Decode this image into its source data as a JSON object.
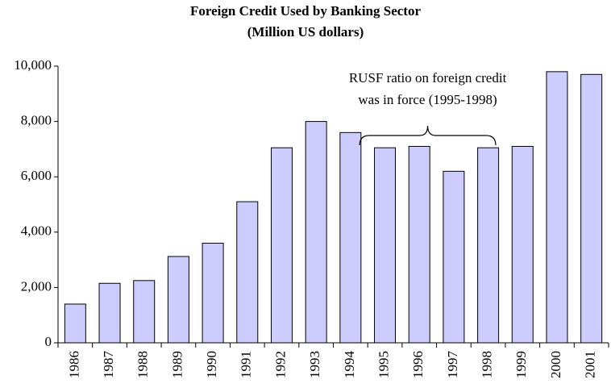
{
  "chart_data": {
    "type": "bar",
    "title": [
      "Foreign Credit Used by Banking Sector",
      "(Million US dollars)"
    ],
    "categories": [
      "1986",
      "1987",
      "1988",
      "1989",
      "1990",
      "1991",
      "1992",
      "1993",
      "1994",
      "1995",
      "1996",
      "1997",
      "1998",
      "1999",
      "2000",
      "2001"
    ],
    "values": [
      1400,
      2150,
      2250,
      3120,
      3600,
      5100,
      7050,
      8000,
      7600,
      7050,
      7100,
      6200,
      7050,
      7100,
      9800,
      9700
    ],
    "color": "#ccccff",
    "annotation": [
      "RUSF ratio on foreign credit",
      "was in force (1995-1998)"
    ],
    "ylim": [
      0,
      10000
    ],
    "yticks": [
      0,
      {
        "value": 2000,
        "label": "2,000"
      },
      {
        "value": 4000,
        "label": "4,000"
      },
      {
        "value": 6000,
        "label": "6,000"
      },
      {
        "value": 8000,
        "label": "8,000"
      },
      {
        "value": 10000,
        "label": "10,000"
      }
    ],
    "grid": false
  }
}
